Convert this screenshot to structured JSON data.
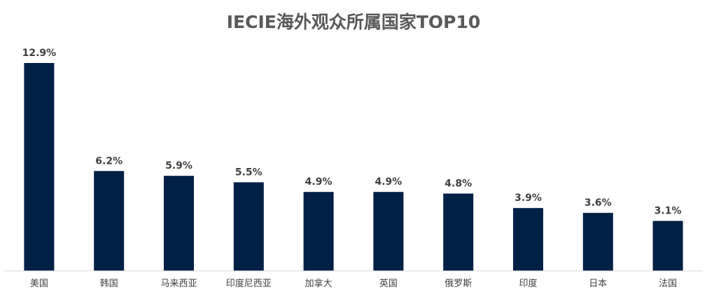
{
  "chart_data": {
    "type": "bar",
    "title": "IECIE海外观众所属国家TOP10",
    "xlabel": "",
    "ylabel": "",
    "categories": [
      "美国",
      "韩国",
      "马来西亚",
      "印度尼西亚",
      "加拿大",
      "英国",
      "俄罗斯",
      "印度",
      "日本",
      "法国"
    ],
    "values": [
      12.9,
      6.2,
      5.9,
      5.5,
      4.9,
      4.9,
      4.8,
      3.9,
      3.6,
      3.1
    ],
    "data_labels": [
      "12.9%",
      "6.2%",
      "5.9%",
      "5.5%",
      "4.9%",
      "4.9%",
      "4.8%",
      "3.9%",
      "3.6%",
      "3.1%"
    ],
    "ylim": [
      0,
      12.9
    ],
    "grid": false,
    "legend": "none",
    "colors": {
      "bar": "#012045",
      "title": "#595959",
      "label": "#404040",
      "axis": "#d9d9d9"
    }
  }
}
